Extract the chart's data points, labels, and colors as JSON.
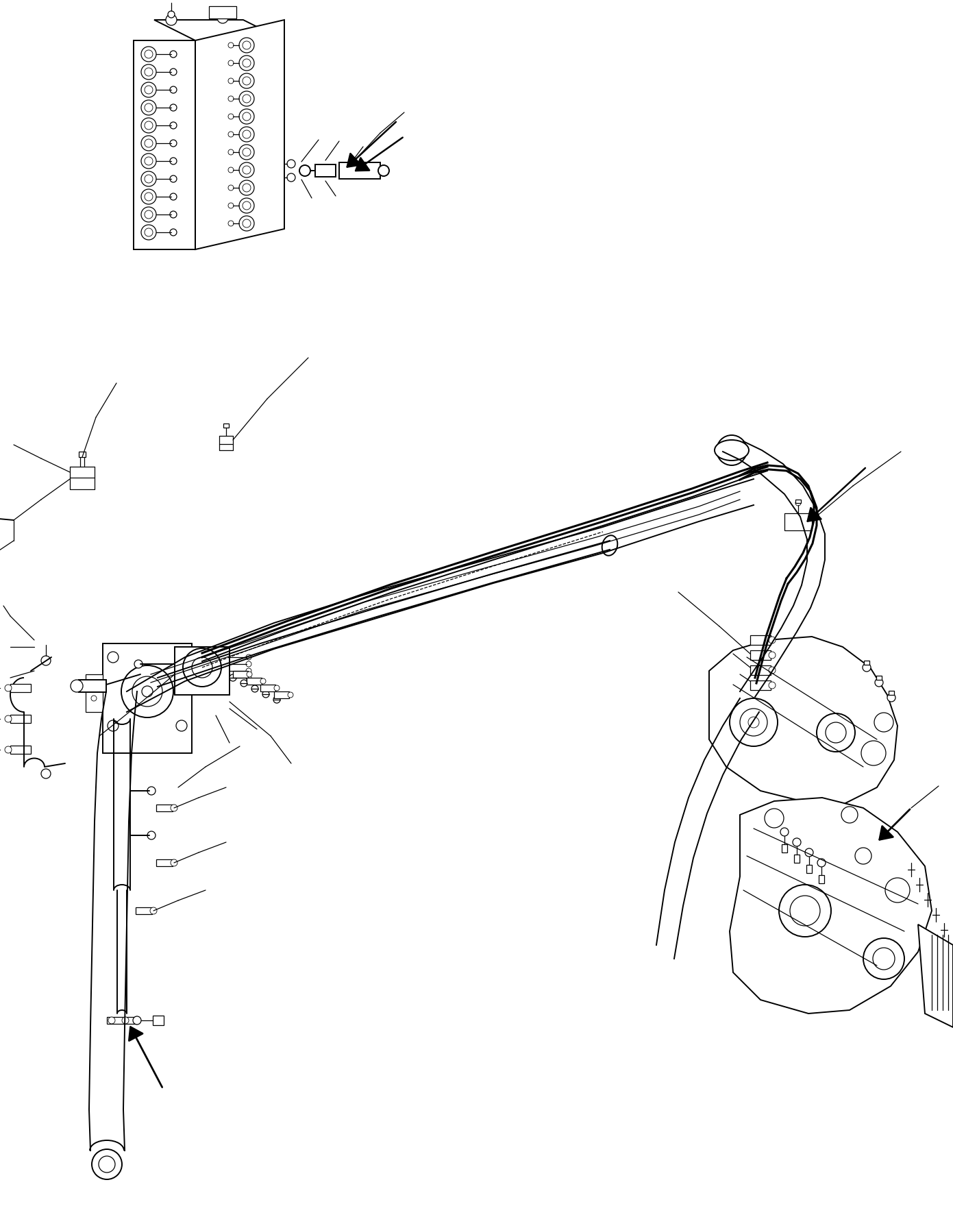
{
  "background_color": "#ffffff",
  "line_color": "#000000",
  "figure_width": 13.91,
  "figure_height": 17.74,
  "dpi": 100
}
